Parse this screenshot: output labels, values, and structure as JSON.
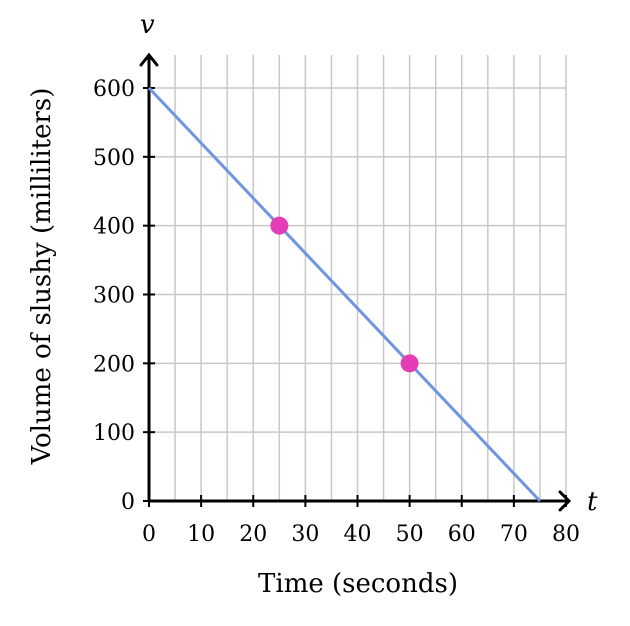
{
  "chart_data": {
    "type": "line",
    "xlabel": "Time (seconds)",
    "ylabel": "Volume of slushy (milliliters)",
    "x_var": "t",
    "y_var": "v",
    "xlim": [
      0,
      80
    ],
    "ylim": [
      0,
      600
    ],
    "x_ticks": [
      0,
      10,
      20,
      30,
      40,
      50,
      60,
      70,
      80
    ],
    "y_ticks": [
      0,
      100,
      200,
      300,
      400,
      500,
      600
    ],
    "x_minor_step": 5,
    "grid": true,
    "series": [
      {
        "x": [
          0,
          75
        ],
        "y": [
          600,
          0
        ]
      }
    ],
    "points": [
      {
        "x": 25,
        "y": 400
      },
      {
        "x": 50,
        "y": 200
      }
    ],
    "colors": {
      "line": "#6f95e0",
      "points": "#e43db5",
      "grid": "#c8c8c8",
      "axis": "#000000"
    }
  }
}
